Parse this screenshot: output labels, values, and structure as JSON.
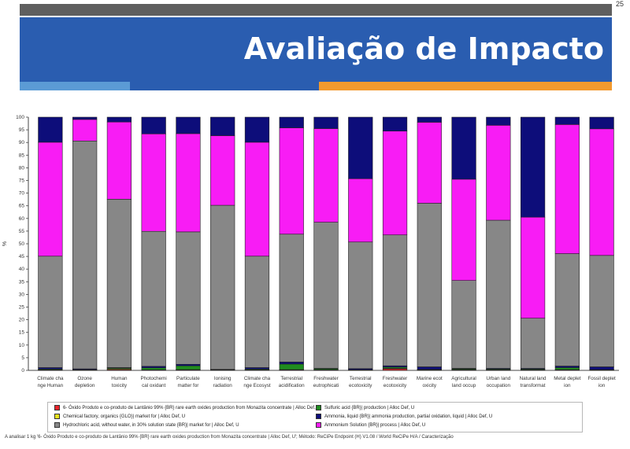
{
  "header": {
    "title": "Avaliação de Impacto",
    "page_number": "25"
  },
  "colors": {
    "topbar": "#5f5f5f",
    "title_band": "#2a5db0",
    "stripe_light_blue": "#5b9bd5",
    "stripe_orange": "#f29a2e"
  },
  "chart_data": {
    "type": "bar",
    "stacked": true,
    "ylabel": "%",
    "ylim": [
      0,
      100
    ],
    "yticks": [
      0,
      5,
      10,
      15,
      20,
      25,
      30,
      35,
      40,
      45,
      50,
      55,
      60,
      65,
      70,
      75,
      80,
      85,
      90,
      95,
      100
    ],
    "grid": false,
    "categories": [
      [
        "Climate cha",
        "nge Human"
      ],
      [
        "Ozone",
        "depletion"
      ],
      [
        "Human",
        "toxicity"
      ],
      [
        "Photochemi",
        "cal oxidant"
      ],
      [
        "Particulate",
        "matter for"
      ],
      [
        "Ionising",
        "radiation"
      ],
      [
        "Climate cha",
        "nge Ecosyst"
      ],
      [
        "Terrestrial",
        "acidification"
      ],
      [
        "Freshwater",
        "eutrophicati"
      ],
      [
        "Terrestrial",
        "ecotoxicity"
      ],
      [
        "Freshwater",
        "ecotoxicity"
      ],
      [
        "Marine ecot",
        "oxicity"
      ],
      [
        "Agricultural",
        "land occup"
      ],
      [
        "Urban land",
        "occupation"
      ],
      [
        "Natural land",
        "transformat"
      ],
      [
        "Metal deplet",
        "ion"
      ],
      [
        "Fossil deplet",
        "ion"
      ]
    ],
    "series": [
      {
        "name": "6- Óxido Produto e co-produto de Lantânio 99% {BR} rare earth oxides production from Monazita concentrate | Alloc Def, U",
        "color": "#e8232a",
        "values": [
          0.1,
          0.1,
          0.3,
          0.1,
          0.2,
          0.1,
          0.1,
          0.2,
          0.1,
          0.1,
          0.6,
          0.1,
          0.1,
          0.1,
          0.1,
          0.2,
          0.1
        ]
      },
      {
        "name": "Chemical factory, organics {GLO}| market for | Alloc Def, U",
        "color": "#e8e320",
        "values": [
          0.1,
          0.1,
          0.3,
          0.1,
          0.1,
          0.1,
          0.1,
          0.1,
          0.1,
          0.1,
          0.2,
          0.1,
          0.2,
          0.1,
          0.1,
          0.1,
          0.1
        ]
      },
      {
        "name": "Sulfuric acid {BR}| production | Alloc Def, U",
        "color": "#1f8c1f",
        "values": [
          0.3,
          0.1,
          0.3,
          0.8,
          1.5,
          0.1,
          0.3,
          2.2,
          0.4,
          0.1,
          0.5,
          0.2,
          0.3,
          0.3,
          0.3,
          0.8,
          0.1
        ]
      },
      {
        "name": "Ammonia, liquid {BR}| ammonia production, partial oxidation, liquid | Alloc Def, U",
        "color": "#0d0d7a",
        "values": [
          0.6,
          0.3,
          0.2,
          0.6,
          0.6,
          0.1,
          0.6,
          0.8,
          0.2,
          0.4,
          0.5,
          1.0,
          0.2,
          0.3,
          0.3,
          0.6,
          1.1
        ]
      },
      {
        "name": "Hydrochloric acid, without water, in 30% solution state {BR}| market for | Alloc Def, U",
        "color": "#878787",
        "values": [
          44,
          90,
          66.5,
          53.3,
          52.3,
          64.8,
          44,
          50.5,
          57.7,
          50,
          51.7,
          64.6,
          34.7,
          58.5,
          19.8,
          44.4,
          44
        ]
      },
      {
        "name": "Ammonium Solution {BR}| process | Alloc Def, U",
        "color": "#f81cf5",
        "values": [
          45,
          8.5,
          30.5,
          38.5,
          38.8,
          27.5,
          45,
          42,
          37,
          25,
          41,
          32,
          40,
          37.5,
          39.9,
          51,
          50
        ]
      },
      {
        "name": "remainder",
        "color": "#0d0d7a",
        "legend": false,
        "values": [
          9.9,
          0.9,
          1.9,
          6.6,
          6.5,
          7.3,
          9.9,
          4.2,
          4.5,
          24.3,
          5.5,
          2.0,
          24.5,
          3.2,
          39.5,
          2.9,
          4.6
        ]
      }
    ]
  },
  "legend": {
    "items": [
      {
        "label": "6- Óxido Produto e co-produto de Lantânio 99% {BR} rare earth oxides production from Monazita concentrate | Alloc Def, U",
        "color": "#e8232a"
      },
      {
        "label": "Sulfuric acid {BR}| production | Alloc Def, U",
        "color": "#1f8c1f"
      },
      {
        "label": "Chemical factory, organics {GLO}| market for | Alloc Def, U",
        "color": "#e8e320"
      },
      {
        "label": "Ammonia, liquid {BR}| ammonia production, partial oxidation, liquid | Alloc Def, U",
        "color": "#0d0d7a"
      },
      {
        "label": "Hydrochloric acid, without water, in 30% solution state {BR}| market for | Alloc Def, U",
        "color": "#878787"
      },
      {
        "label": "Ammonium Solution {BR}| process | Alloc Def, U",
        "color": "#f81cf5"
      }
    ]
  },
  "caption": "A analisar 1 kg '6- Óxido Produto e co-produto de Lantânio 99% {BR} rare earth oxides production from Monazita concentrate | Alloc Def, U'; Método: ReCiPe Endpoint (H) V1.08 / World ReCiPe H/A / Caracterização"
}
